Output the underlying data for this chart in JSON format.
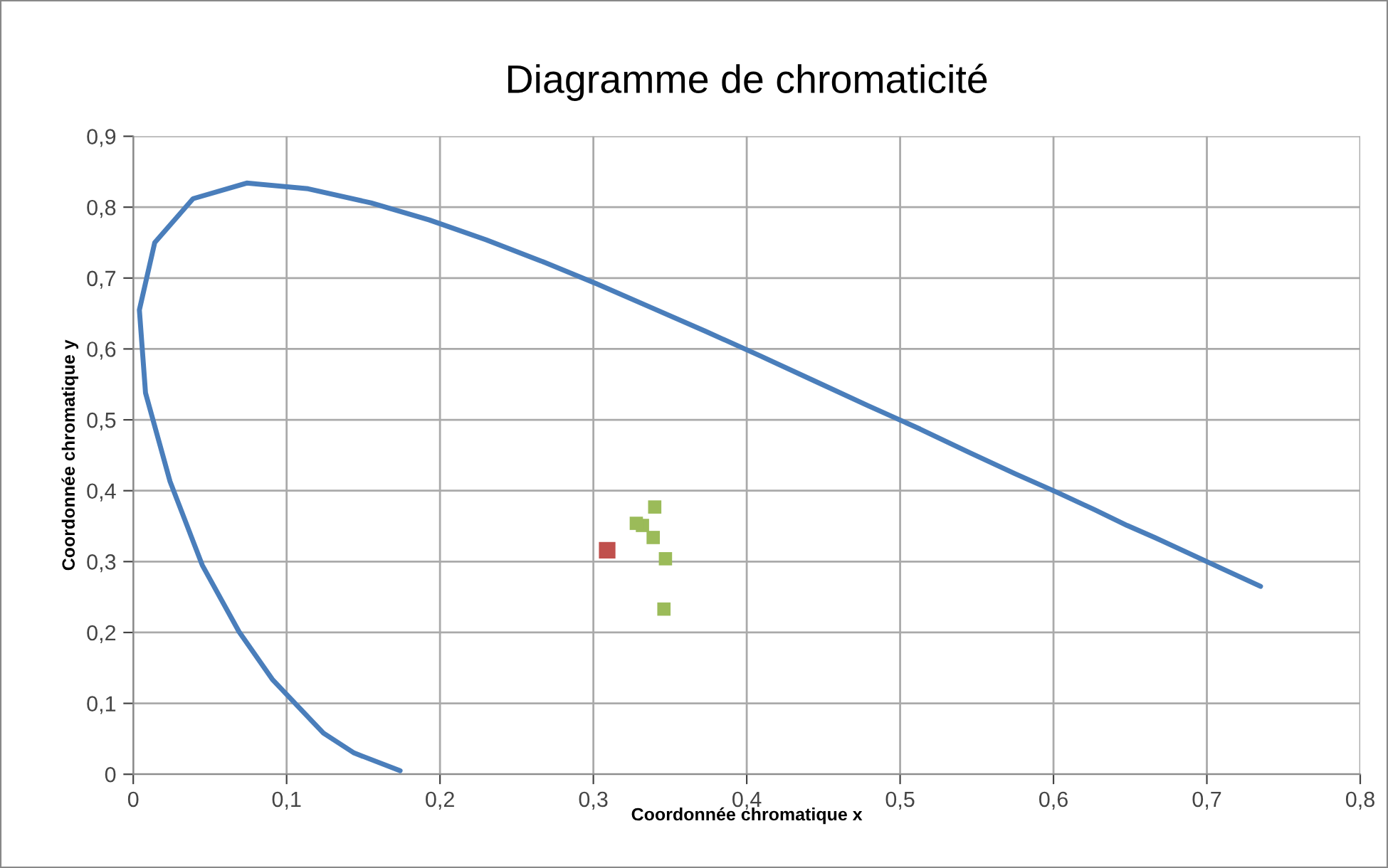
{
  "chart_data": {
    "type": "scatter",
    "title": "Diagramme de chromaticité",
    "xlabel": "Coordonnée chromatique x",
    "ylabel": "Coordonnée chromatique y",
    "series": [
      {
        "type": "line",
        "color": "#4a7ebb",
        "marker": "none",
        "line_style": "solid",
        "x": [
          0.174,
          0.144,
          0.124,
          0.091,
          0.069,
          0.045,
          0.024,
          0.008,
          0.004,
          0.014,
          0.039,
          0.074,
          0.114,
          0.155,
          0.193,
          0.23,
          0.266,
          0.302,
          0.337,
          0.373,
          0.409,
          0.444,
          0.479,
          0.513,
          0.545,
          0.575,
          0.603,
          0.627,
          0.648,
          0.666,
          0.692,
          0.708,
          0.735
        ],
        "values": [
          0.005,
          0.03,
          0.058,
          0.133,
          0.201,
          0.295,
          0.413,
          0.538,
          0.655,
          0.75,
          0.812,
          0.834,
          0.826,
          0.806,
          0.782,
          0.754,
          0.724,
          0.692,
          0.659,
          0.625,
          0.59,
          0.555,
          0.52,
          0.487,
          0.454,
          0.424,
          0.397,
          0.373,
          0.351,
          0.334,
          0.308,
          0.292,
          0.265
        ]
      },
      {
        "color": "#9bbb59",
        "marker": "square",
        "x": [
          0.34,
          0.332,
          0.328,
          0.339,
          0.347,
          0.346
        ],
        "values": [
          0.377,
          0.351,
          0.354,
          0.334,
          0.304,
          0.233
        ]
      },
      {
        "color": "#c0504d",
        "marker": "square",
        "x": [
          0.309
        ],
        "values": [
          0.316
        ]
      }
    ],
    "xlim": [
      0,
      0.8
    ],
    "ylim": [
      0,
      0.9
    ],
    "xticks": [
      0,
      {
        "value": 0.1,
        "label": "0,1"
      },
      {
        "value": 0.2,
        "label": "0,2"
      },
      {
        "value": 0.3,
        "label": "0,3"
      },
      {
        "value": 0.4,
        "label": "0,4"
      },
      {
        "value": 0.5,
        "label": "0,5"
      },
      {
        "value": 0.6,
        "label": "0,6"
      },
      {
        "value": 0.7,
        "label": "0,7"
      },
      {
        "value": 0.8,
        "label": "0,8"
      }
    ],
    "yticks": [
      0,
      {
        "value": 0.1,
        "label": "0,1"
      },
      {
        "value": 0.2,
        "label": "0,2"
      },
      {
        "value": 0.3,
        "label": "0,3"
      },
      {
        "value": 0.4,
        "label": "0,4"
      },
      {
        "value": 0.5,
        "label": "0,5"
      },
      {
        "value": 0.6,
        "label": "0,6"
      },
      {
        "value": 0.7,
        "label": "0,7"
      },
      {
        "value": 0.8,
        "label": "0,8"
      },
      {
        "value": 0.9,
        "label": "0,9"
      }
    ],
    "grid": true
  }
}
